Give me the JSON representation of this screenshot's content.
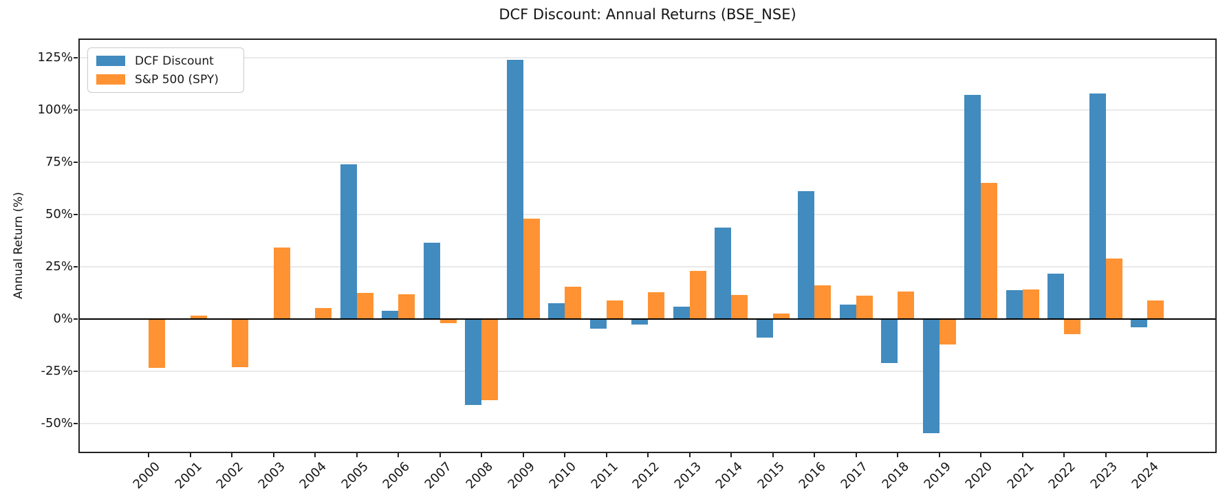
{
  "chart_data": {
    "type": "bar",
    "title": "DCF Discount: Annual Returns (BSE_NSE)",
    "xlabel": "",
    "ylabel": "Annual Return (%)",
    "categories": [
      "2000",
      "2001",
      "2002",
      "2003",
      "2004",
      "2005",
      "2006",
      "2007",
      "2008",
      "2009",
      "2010",
      "2011",
      "2012",
      "2013",
      "2014",
      "2015",
      "2016",
      "2017",
      "2018",
      "2019",
      "2020",
      "2021",
      "2022",
      "2023",
      "2024"
    ],
    "series": [
      {
        "name": "DCF Discount",
        "color": "#418bbf",
        "values": [
          0,
          0,
          0,
          0,
          0,
          74.0,
          4.0,
          36.6,
          -41.2,
          124.1,
          7.6,
          -4.6,
          -2.7,
          5.8,
          43.6,
          -8.9,
          61.2,
          6.9,
          -21.0,
          -54.5,
          107.3,
          13.9,
          21.6,
          107.9,
          -3.9
        ]
      },
      {
        "name": "S&P 500 (SPY)",
        "color": "#ff9232",
        "values": [
          -23.4,
          1.7,
          -23.1,
          34.2,
          5.3,
          12.4,
          11.8,
          -2.1,
          -38.7,
          47.9,
          15.4,
          9.0,
          12.8,
          23.1,
          11.6,
          2.7,
          16.1,
          11.3,
          13.1,
          -12.1,
          65.0,
          14.2,
          -7.2,
          28.9,
          9.0
        ]
      }
    ],
    "yticks": {
      "values": [
        -50,
        -25,
        0,
        25,
        50,
        75,
        100,
        125
      ],
      "labels": [
        "-50%",
        "-25%",
        "0%",
        "25%",
        "50%",
        "75%",
        "100%",
        "125%"
      ]
    },
    "ylim": [
      -63.5,
      133.5
    ],
    "grid": true,
    "zero_line": true,
    "legend_position": "upper left",
    "colors": {
      "axis": "#222222",
      "grid": "#e9e9e9",
      "zero_line": "#000000",
      "background": "#ffffff"
    }
  }
}
